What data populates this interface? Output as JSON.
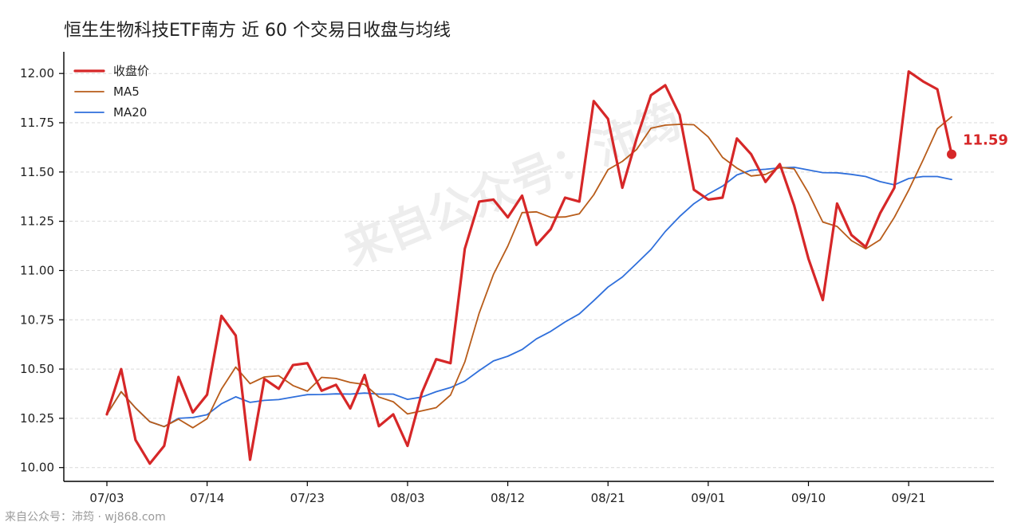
{
  "chart_data": {
    "type": "line",
    "title": "恒生生物科技ETF南方 近 60 个交易日收盘与均线",
    "x_tick_labels": [
      "07/03",
      "07/14",
      "07/23",
      "08/03",
      "08/12",
      "08/21",
      "09/01",
      "09/10",
      "09/21"
    ],
    "x_tick_index": [
      0,
      7,
      14,
      21,
      28,
      35,
      42,
      49,
      56
    ],
    "ylim": [
      9.93,
      12.11
    ],
    "y_ticks": [
      10.0,
      10.25,
      10.5,
      10.75,
      11.0,
      11.25,
      11.5,
      11.75,
      12.0
    ],
    "y_tick_labels": [
      "10.00",
      "10.25",
      "10.50",
      "10.75",
      "11.00",
      "11.25",
      "11.50",
      "11.75",
      "12.00"
    ],
    "grid": "horizontal",
    "legend_position": "top-left",
    "series": [
      {
        "name": "收盘价",
        "color": "#d62728",
        "values": [
          10.27,
          10.5,
          10.14,
          10.02,
          10.11,
          10.46,
          10.28,
          10.37,
          10.77,
          10.67,
          10.04,
          10.45,
          10.4,
          10.52,
          10.53,
          10.39,
          10.42,
          10.3,
          10.47,
          10.21,
          10.27,
          10.11,
          10.38,
          10.55,
          10.53,
          11.11,
          11.35,
          11.36,
          11.27,
          11.38,
          11.13,
          11.21,
          11.37,
          11.35,
          11.86,
          11.77,
          11.42,
          11.67,
          11.89,
          11.94,
          11.79,
          11.41,
          11.36,
          11.37,
          11.67,
          11.59,
          11.45,
          11.54,
          11.33,
          11.06,
          10.85,
          11.34,
          11.18,
          11.12,
          11.29,
          11.42,
          12.01,
          11.96,
          11.92,
          11.59
        ]
      },
      {
        "name": "MA5",
        "color": "#b85c1a",
        "values": [
          10.27,
          10.385,
          10.303,
          10.233,
          10.208,
          10.246,
          10.202,
          10.248,
          10.398,
          10.51,
          10.426,
          10.46,
          10.466,
          10.416,
          10.388,
          10.458,
          10.452,
          10.432,
          10.422,
          10.358,
          10.334,
          10.272,
          10.288,
          10.304,
          10.368,
          10.536,
          10.784,
          10.98,
          11.124,
          11.294,
          11.298,
          11.27,
          11.272,
          11.288,
          11.384,
          11.512,
          11.554,
          11.614,
          11.722,
          11.738,
          11.742,
          11.74,
          11.678,
          11.574,
          11.52,
          11.48,
          11.488,
          11.524,
          11.516,
          11.394,
          11.246,
          11.224,
          11.152,
          11.11,
          11.156,
          11.27,
          11.408,
          11.56,
          11.72,
          11.78
        ]
      },
      {
        "name": "MA20",
        "color": "#2f6fdb",
        "values": [
          10.27,
          10.385,
          10.303,
          10.233,
          10.208,
          10.25,
          10.254,
          10.268,
          10.324,
          10.359,
          10.331,
          10.341,
          10.345,
          10.358,
          10.37,
          10.371,
          10.374,
          10.373,
          10.378,
          10.373,
          10.373,
          10.346,
          10.358,
          10.385,
          10.406,
          10.439,
          10.492,
          10.541,
          10.565,
          10.599,
          10.653,
          10.691,
          10.739,
          10.78,
          10.847,
          10.916,
          10.967,
          11.036,
          11.107,
          11.198,
          11.274,
          11.339,
          11.388,
          11.428,
          11.485,
          11.509,
          11.514,
          11.521,
          11.524,
          11.51,
          11.497,
          11.496,
          11.488,
          11.477,
          11.451,
          11.435,
          11.467,
          11.477,
          11.477,
          11.462
        ]
      }
    ],
    "last_value_label": "11.59",
    "watermark": "来自公众号：沛筠",
    "footer": "来自公众号：沛筠 · wj868.com"
  }
}
